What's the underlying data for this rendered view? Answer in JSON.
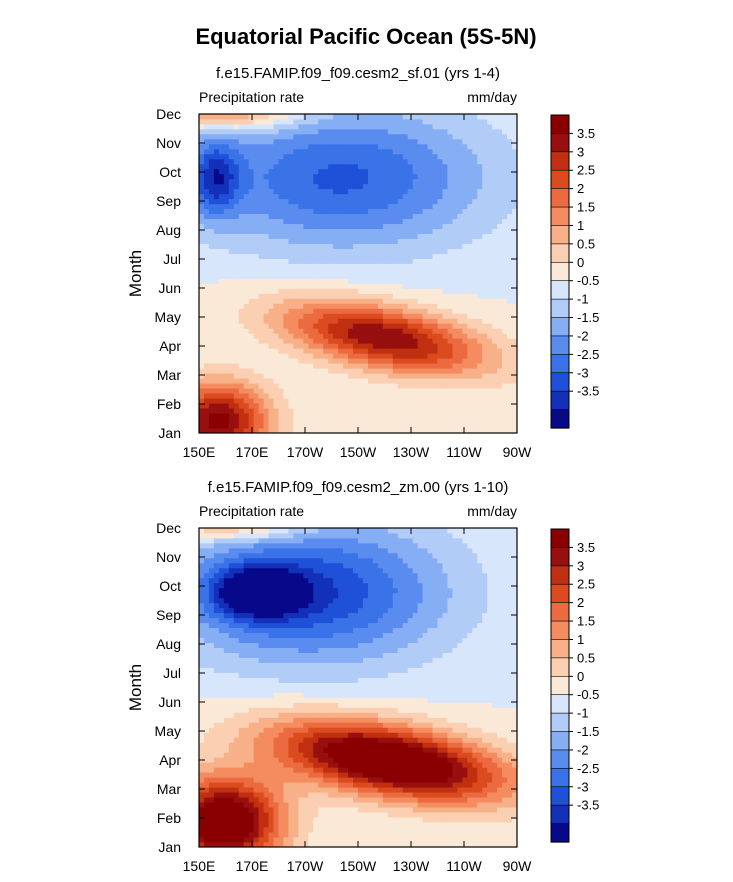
{
  "title": "Equatorial Pacific Ocean (5S-5N)",
  "colors": [
    "#08088a",
    "#1230b8",
    "#1f50d8",
    "#3a72e8",
    "#5a8cf0",
    "#86aef5",
    "#b2ccf8",
    "#d8e6fb",
    "#fbe9d8",
    "#fbcfb2",
    "#f8b088",
    "#f48c60",
    "#ec6a40",
    "#dc4a20",
    "#c03010",
    "#980f0f",
    "#8a0000"
  ],
  "chart_data": [
    {
      "type": "heatmap",
      "subtitle": "f.e15.FAMIP.f09_f09.cesm2_sf.01 (yrs 1-4)",
      "left_label": "Precipitation rate",
      "right_label": "mm/day",
      "ylabel": "Month",
      "xticks": [
        "150E",
        "170E",
        "170W",
        "150W",
        "130W",
        "110W",
        "90W"
      ],
      "yticks": [
        "Jan",
        "Feb",
        "Mar",
        "Apr",
        "May",
        "Jun",
        "Jul",
        "Aug",
        "Sep",
        "Oct",
        "Nov",
        "Dec"
      ],
      "colorbar_labels": [
        "3.5",
        "3",
        "2.5",
        "2",
        "1.5",
        "1",
        "0.5",
        "0",
        "-0.5",
        "-1",
        "-1.5",
        "-2",
        "-2.5",
        "-3",
        "-3.5"
      ],
      "fields": [
        {
          "name": "warm_band",
          "amp": 4.0,
          "xc": 0.58,
          "yc": 0.3,
          "sx": 0.32,
          "sy": 0.1,
          "slope": 0.18
        },
        {
          "name": "warm_west",
          "amp": 4.2,
          "xc": 0.06,
          "yc": 0.04,
          "sx": 0.16,
          "sy": 0.12,
          "slope": 0.0
        },
        {
          "name": "warm_top",
          "amp": 2.0,
          "xc": 0.1,
          "yc": 1.0,
          "sx": 0.22,
          "sy": 0.05,
          "slope": 0.0
        },
        {
          "name": "cold_main",
          "amp": -2.6,
          "xc": 0.45,
          "yc": 0.8,
          "sx": 0.45,
          "sy": 0.22,
          "slope": 0.0
        },
        {
          "name": "cold_west",
          "amp": -2.4,
          "xc": 0.05,
          "yc": 0.8,
          "sx": 0.08,
          "sy": 0.12,
          "slope": 0.0
        }
      ]
    },
    {
      "type": "heatmap",
      "subtitle": "f.e15.FAMIP.f09_f09.cesm2_zm.00 (yrs 1-10)",
      "left_label": "Precipitation rate",
      "right_label": "mm/day",
      "ylabel": "Month",
      "xticks": [
        "150E",
        "170E",
        "170W",
        "150W",
        "130W",
        "110W",
        "90W"
      ],
      "yticks": [
        "Jan",
        "Feb",
        "Mar",
        "Apr",
        "May",
        "Jun",
        "Jul",
        "Aug",
        "Sep",
        "Oct",
        "Nov",
        "Dec"
      ],
      "colorbar_labels": [
        "3.5",
        "3",
        "2.5",
        "2",
        "1.5",
        "1",
        "0.5",
        "0",
        "-0.5",
        "-1",
        "-1.5",
        "-2",
        "-2.5",
        "-3",
        "-3.5"
      ],
      "fields": [
        {
          "name": "warm_band",
          "amp": 5.5,
          "xc": 0.6,
          "yc": 0.27,
          "sx": 0.36,
          "sy": 0.11,
          "slope": 0.16
        },
        {
          "name": "warm_west",
          "amp": 5.2,
          "xc": 0.08,
          "yc": 0.08,
          "sx": 0.18,
          "sy": 0.14,
          "slope": 0.0
        },
        {
          "name": "warm_top",
          "amp": 1.6,
          "xc": 0.12,
          "yc": 1.0,
          "sx": 0.22,
          "sy": 0.04,
          "slope": 0.0
        },
        {
          "name": "cold_main",
          "amp": -3.0,
          "xc": 0.35,
          "yc": 0.8,
          "sx": 0.42,
          "sy": 0.22,
          "slope": 0.0
        },
        {
          "name": "cold_west",
          "amp": -3.0,
          "xc": 0.18,
          "yc": 0.8,
          "sx": 0.14,
          "sy": 0.08,
          "slope": 0.0
        }
      ]
    }
  ]
}
